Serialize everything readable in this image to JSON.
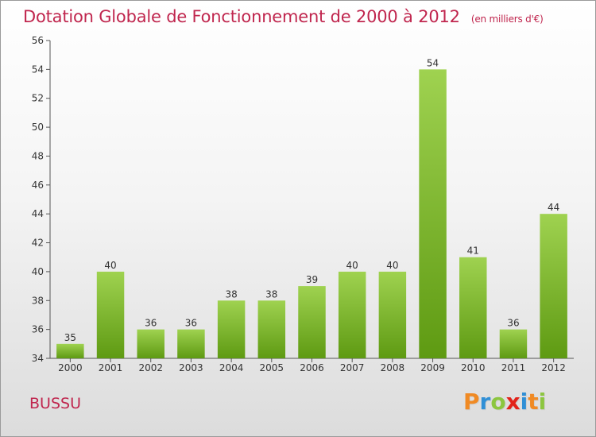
{
  "header": {
    "title": "Dotation Globale de Fonctionnement de 2000 à 2012",
    "unit": "(en milliers d'€)"
  },
  "footer": {
    "commune": "BUSSU",
    "logo_letters": [
      "P",
      "r",
      "o",
      "x",
      "i",
      "t",
      "i"
    ]
  },
  "colors": {
    "title": "#c0264e",
    "bar_top": "#9fd250",
    "bar_bottom": "#5e9a12",
    "axis": "#555555"
  },
  "chart_data": {
    "type": "bar",
    "title": "Dotation Globale de Fonctionnement de 2000 à 2012",
    "xlabel": "",
    "ylabel": "",
    "categories": [
      "2000",
      "2001",
      "2002",
      "2003",
      "2004",
      "2005",
      "2006",
      "2007",
      "2008",
      "2009",
      "2010",
      "2011",
      "2012"
    ],
    "values": [
      35,
      40,
      36,
      36,
      38,
      38,
      39,
      40,
      40,
      54,
      41,
      36,
      44
    ],
    "ylim": [
      34,
      56
    ],
    "yticks": [
      34,
      36,
      38,
      40,
      42,
      44,
      46,
      48,
      50,
      52,
      54,
      56
    ],
    "grid": false,
    "data_labels": true
  }
}
